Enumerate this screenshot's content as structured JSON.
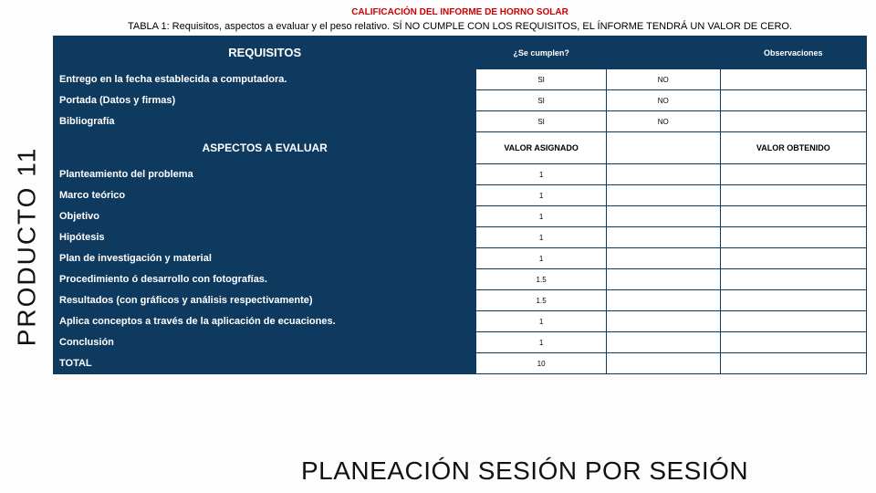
{
  "sidebar": {
    "label": "PRODUCTO 11"
  },
  "header": {
    "title": "CALIFICACIÓN DEL INFORME DE HORNO SOLAR",
    "subtitle": "TABLA 1: Requisitos, aspectos a evaluar y el peso relativo.   SÍ NO CUMPLE CON LOS REQUISITOS, EL ÍNFORME TENDRÁ UN VALOR DE CERO."
  },
  "table": {
    "col_widths": [
      "52%",
      "16%",
      "14%",
      "18%"
    ],
    "colors": {
      "header_bg": "#0f3a5f",
      "header_fg": "#ffffff",
      "border": "#0f3a5f",
      "cell_bg": "#ffffff",
      "cell_fg": "#000000"
    },
    "section1": {
      "headers": [
        "REQUISITOS",
        "¿Se cumplen?",
        "",
        "Observaciones"
      ],
      "rows": [
        {
          "label": "Entrego en la fecha establecida a computadora.",
          "c1": "SI",
          "c2": "NO",
          "c3": ""
        },
        {
          "label": "Portada (Datos y firmas)",
          "c1": "SI",
          "c2": "NO",
          "c3": ""
        },
        {
          "label": "Bibliografía",
          "c1": "SI",
          "c2": "NO",
          "c3": ""
        }
      ]
    },
    "section2": {
      "headers": [
        "ASPECTOS A EVALUAR",
        "VALOR ASIGNADO",
        "",
        "VALOR OBTENIDO"
      ],
      "rows": [
        {
          "label": "Planteamiento del problema",
          "c1": "1",
          "c2": "",
          "c3": ""
        },
        {
          "label": "Marco teórico",
          "c1": "1",
          "c2": "",
          "c3": ""
        },
        {
          "label": "Objetivo",
          "c1": "1",
          "c2": "",
          "c3": ""
        },
        {
          "label": "Hipótesis",
          "c1": "1",
          "c2": "",
          "c3": ""
        },
        {
          "label": "Plan de investigación y material",
          "c1": "1",
          "c2": "",
          "c3": ""
        },
        {
          "label": "Procedimiento ó desarrollo con fotografías.",
          "c1": "1.5",
          "c2": "",
          "c3": ""
        },
        {
          "label": "Resultados  (con gráficos y análisis respectivamente)",
          "c1": "1.5",
          "c2": "",
          "c3": ""
        },
        {
          "label": "Aplica conceptos a través de la aplicación de ecuaciones.",
          "c1": "1",
          "c2": "",
          "c3": ""
        },
        {
          "label": "Conclusión",
          "c1": "1",
          "c2": "",
          "c3": ""
        },
        {
          "label": "TOTAL",
          "c1": "10",
          "c2": "",
          "c3": ""
        }
      ]
    }
  },
  "footer": {
    "text": "PLANEACIÓN SESIÓN POR SESIÓN"
  }
}
